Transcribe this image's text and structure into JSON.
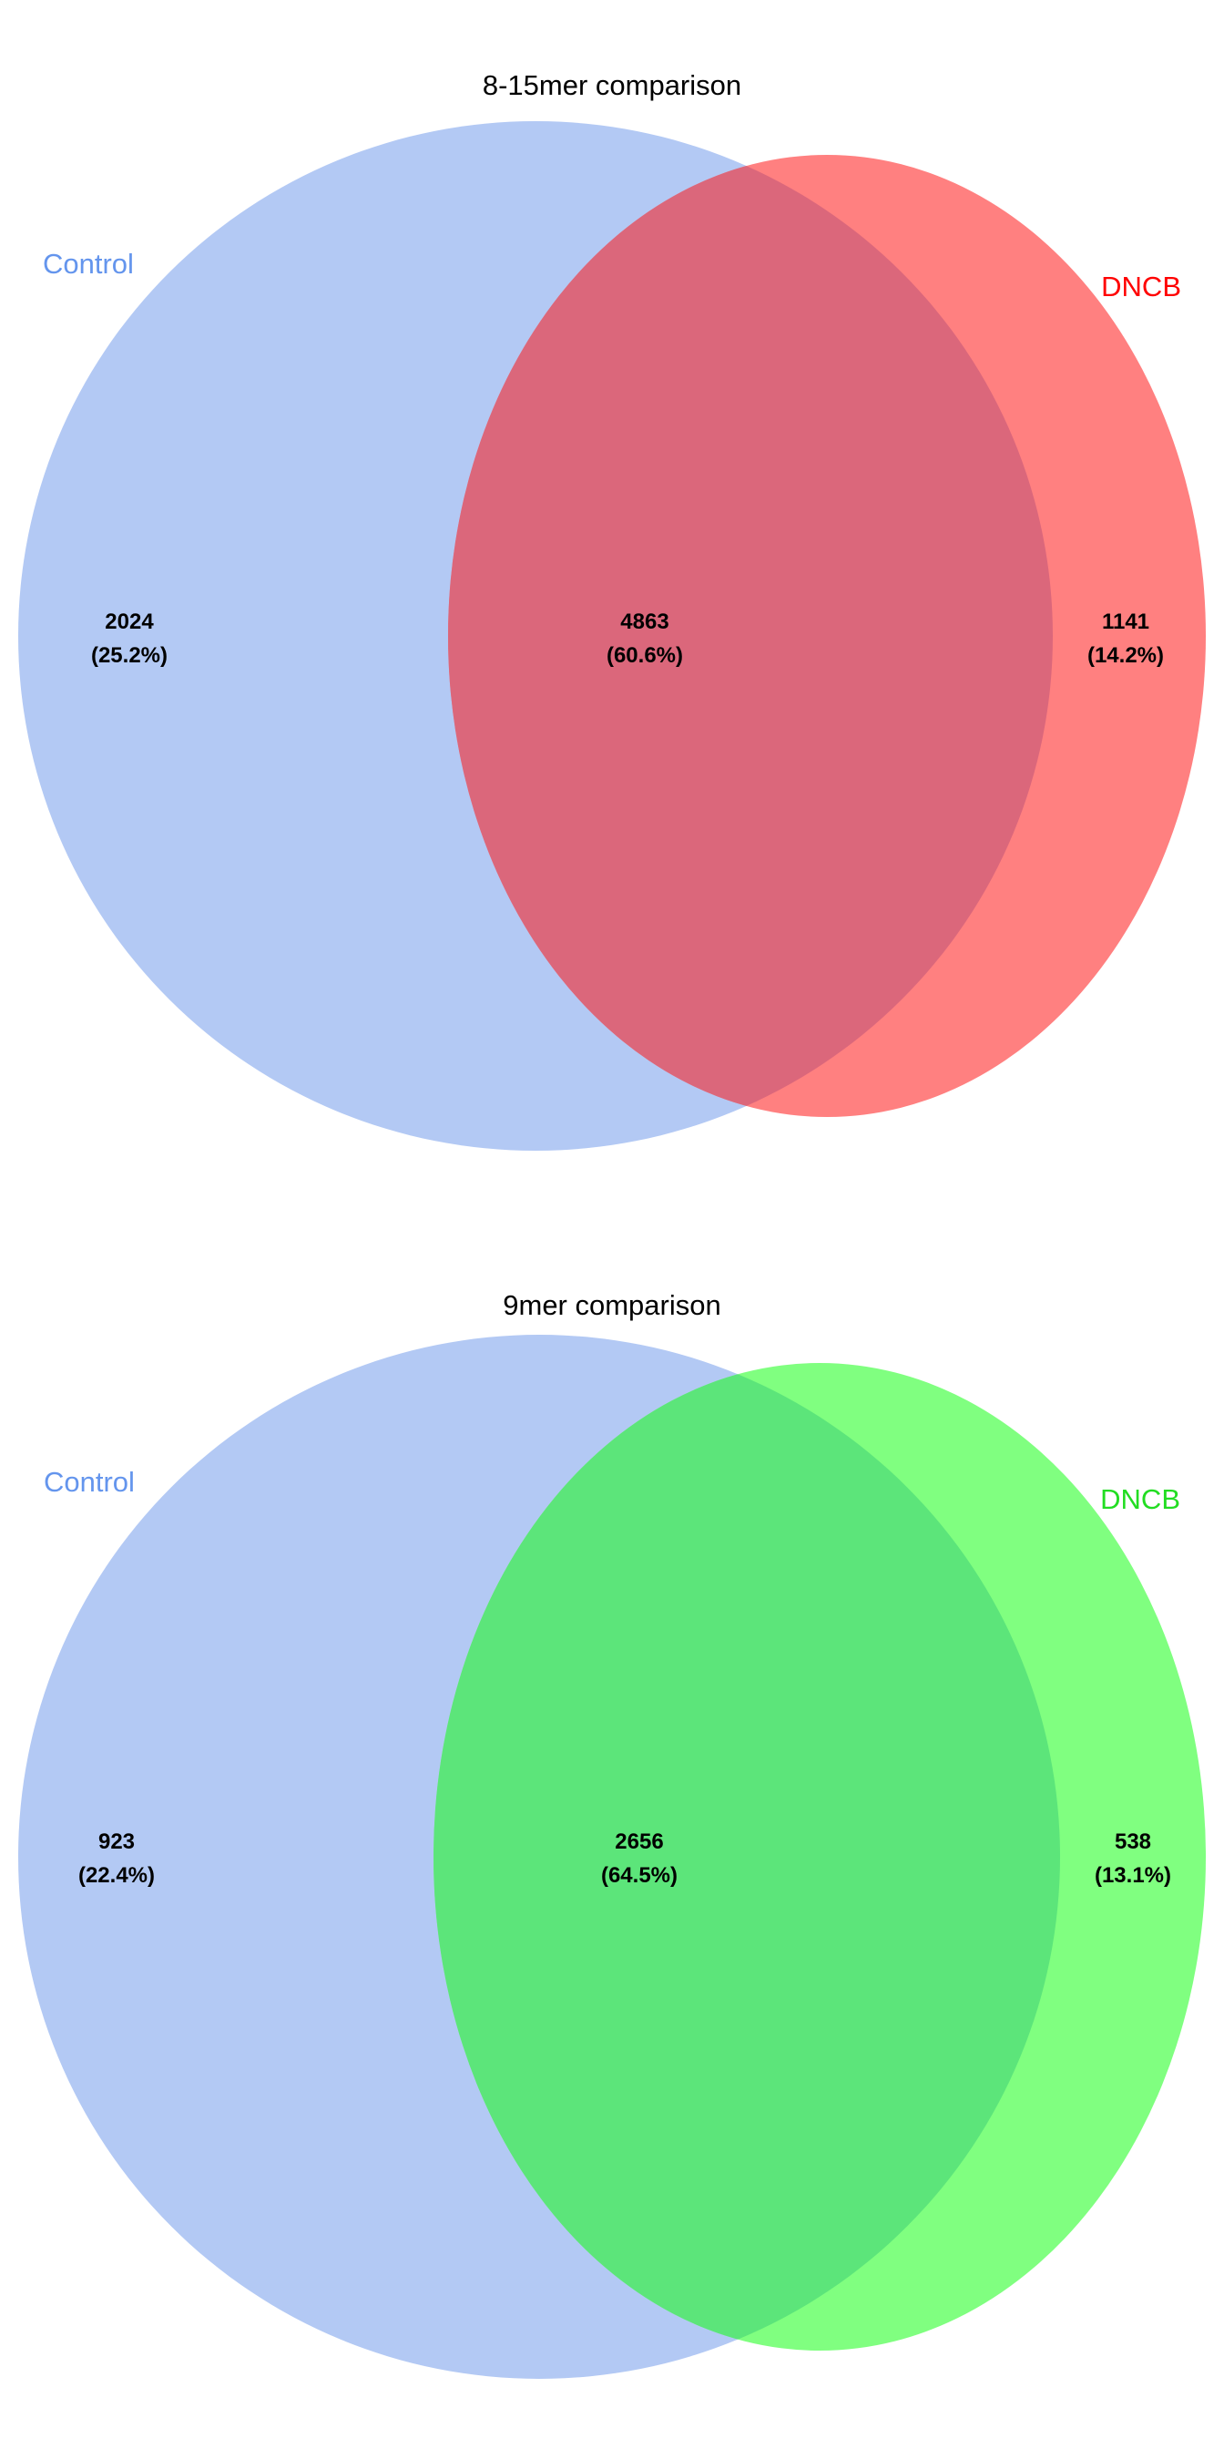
{
  "chart_data": [
    {
      "type": "venn",
      "title": "8-15mer comparison",
      "sets": [
        {
          "name": "Control",
          "color": "#6495ED"
        },
        {
          "name": "DNCB",
          "color": "#FF0000"
        }
      ],
      "colors": {
        "left_fill": "#B3C9F4",
        "right_fill": "#FF8080",
        "overlap_fill": "#DB677B"
      },
      "regions": [
        {
          "region": "Control only",
          "count": "2024",
          "percent": "(25.2%)"
        },
        {
          "region": "Control ∩ DNCB",
          "count": "4863",
          "percent": "(60.6%)"
        },
        {
          "region": "DNCB only",
          "count": "1141",
          "percent": "(14.2%)"
        }
      ]
    },
    {
      "type": "venn",
      "title": "9mer comparison",
      "sets": [
        {
          "name": "Control",
          "color": "#6495ED"
        },
        {
          "name": "DNCB",
          "color": "#22DD22"
        }
      ],
      "colors": {
        "left_fill": "#B3C9F4",
        "right_fill": "#80FF80",
        "overlap_fill": "#5CE57A"
      },
      "regions": [
        {
          "region": "Control only",
          "count": "923",
          "percent": "(22.4%)"
        },
        {
          "region": "Control ∩ DNCB",
          "count": "2656",
          "percent": "(64.5%)"
        },
        {
          "region": "DNCB only",
          "count": "538",
          "percent": "(13.1%)"
        }
      ]
    }
  ]
}
